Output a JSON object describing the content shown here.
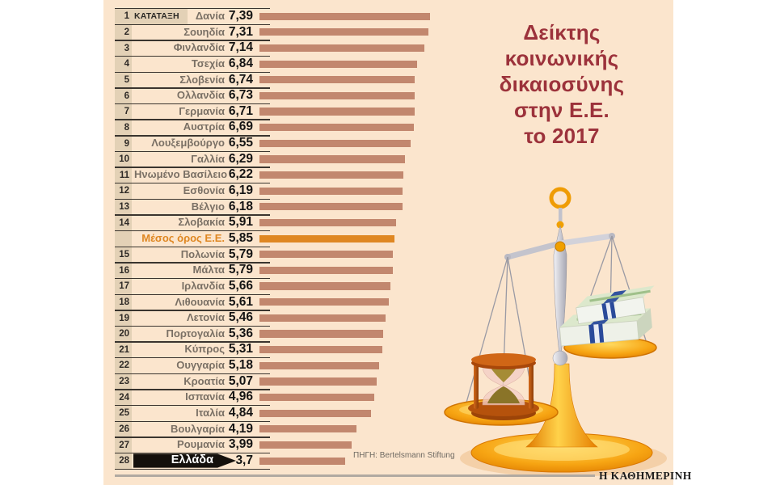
{
  "title": {
    "lines": [
      "Δείκτης",
      "κοινωνικής",
      "δικαιοσύνης",
      "στην Ε.Ε.",
      "το 2017"
    ]
  },
  "source_label": "ΠΗΓΗ: Bertelsmann Stiftung",
  "footer": {
    "brand": "Η ΚΑΘΗΜΕΡΙΝΗ"
  },
  "illustration": "balance-scales-with-hourglass-and-euro-banknotes",
  "colors": {
    "panel_background": "#fbe5cd",
    "bar": "#c2876e",
    "average_bar": "#df8722",
    "rank_column_bg": "#e3d1b6",
    "title_text": "#9c323b",
    "greece_arrow": "#14100c"
  },
  "chart_data": {
    "type": "bar",
    "orientation": "horizontal",
    "title": "Δείκτης κοινωνικής δικαιοσύνης στην Ε.Ε. το 2017",
    "rank_header": "ΚΑΤΑΤΑΞΗ",
    "xlim": [
      0,
      7.5
    ],
    "grid": false,
    "legend": false,
    "rows": [
      {
        "rank": "1",
        "country": "Δανία",
        "value": 7.39,
        "label": "7,39",
        "rank_header": "ΚΑΤΑΤΑΞΗ"
      },
      {
        "rank": "2",
        "country": "Σουηδία",
        "value": 7.31,
        "label": "7,31"
      },
      {
        "rank": "3",
        "country": "Φινλανδία",
        "value": 7.14,
        "label": "7,14"
      },
      {
        "rank": "4",
        "country": "Τσεχία",
        "value": 6.84,
        "label": "6,84"
      },
      {
        "rank": "5",
        "country": "Σλοβενία",
        "value": 6.74,
        "label": "6,74"
      },
      {
        "rank": "6",
        "country": "Ολλανδία",
        "value": 6.73,
        "label": "6,73"
      },
      {
        "rank": "7",
        "country": "Γερμανία",
        "value": 6.71,
        "label": "6,71"
      },
      {
        "rank": "8",
        "country": "Αυστρία",
        "value": 6.69,
        "label": "6,69"
      },
      {
        "rank": "9",
        "country": "Λουξεμβούργο",
        "value": 6.55,
        "label": "6,55"
      },
      {
        "rank": "10",
        "country": "Γαλλία",
        "value": 6.29,
        "label": "6,29"
      },
      {
        "rank": "11",
        "country": "Ηνωμένο Βασίλειο",
        "value": 6.22,
        "label": "6,22"
      },
      {
        "rank": "12",
        "country": "Εσθονία",
        "value": 6.19,
        "label": "6,19"
      },
      {
        "rank": "13",
        "country": "Βέλγιο",
        "value": 6.18,
        "label": "6,18"
      },
      {
        "rank": "14",
        "country": "Σλοβακία",
        "value": 5.91,
        "label": "5,91"
      },
      {
        "rank": "",
        "country": "Μέσος όρος Ε.Ε.",
        "value": 5.85,
        "label": "5,85",
        "highlight": "average"
      },
      {
        "rank": "15",
        "country": "Πολωνία",
        "value": 5.79,
        "label": "5,79"
      },
      {
        "rank": "16",
        "country": "Μάλτα",
        "value": 5.79,
        "label": "5,79"
      },
      {
        "rank": "17",
        "country": "Ιρλανδία",
        "value": 5.66,
        "label": "5,66"
      },
      {
        "rank": "18",
        "country": "Λιθουανία",
        "value": 5.61,
        "label": "5,61"
      },
      {
        "rank": "19",
        "country": "Λετονία",
        "value": 5.46,
        "label": "5,46"
      },
      {
        "rank": "20",
        "country": "Πορτογαλία",
        "value": 5.36,
        "label": "5,36"
      },
      {
        "rank": "21",
        "country": "Κύπρος",
        "value": 5.31,
        "label": "5,31"
      },
      {
        "rank": "22",
        "country": "Ουγγαρία",
        "value": 5.18,
        "label": "5,18"
      },
      {
        "rank": "23",
        "country": "Κροατία",
        "value": 5.07,
        "label": "5,07"
      },
      {
        "rank": "24",
        "country": "Ισπανία",
        "value": 4.96,
        "label": "4,96"
      },
      {
        "rank": "25",
        "country": "Ιταλία",
        "value": 4.84,
        "label": "4,84"
      },
      {
        "rank": "26",
        "country": "Βουλγαρία",
        "value": 4.19,
        "label": "4,19"
      },
      {
        "rank": "27",
        "country": "Ρουμανία",
        "value": 3.99,
        "label": "3,99"
      },
      {
        "rank": "28",
        "country": "Ελλάδα",
        "value": 3.7,
        "label": "3,7",
        "highlight": "last"
      }
    ]
  }
}
